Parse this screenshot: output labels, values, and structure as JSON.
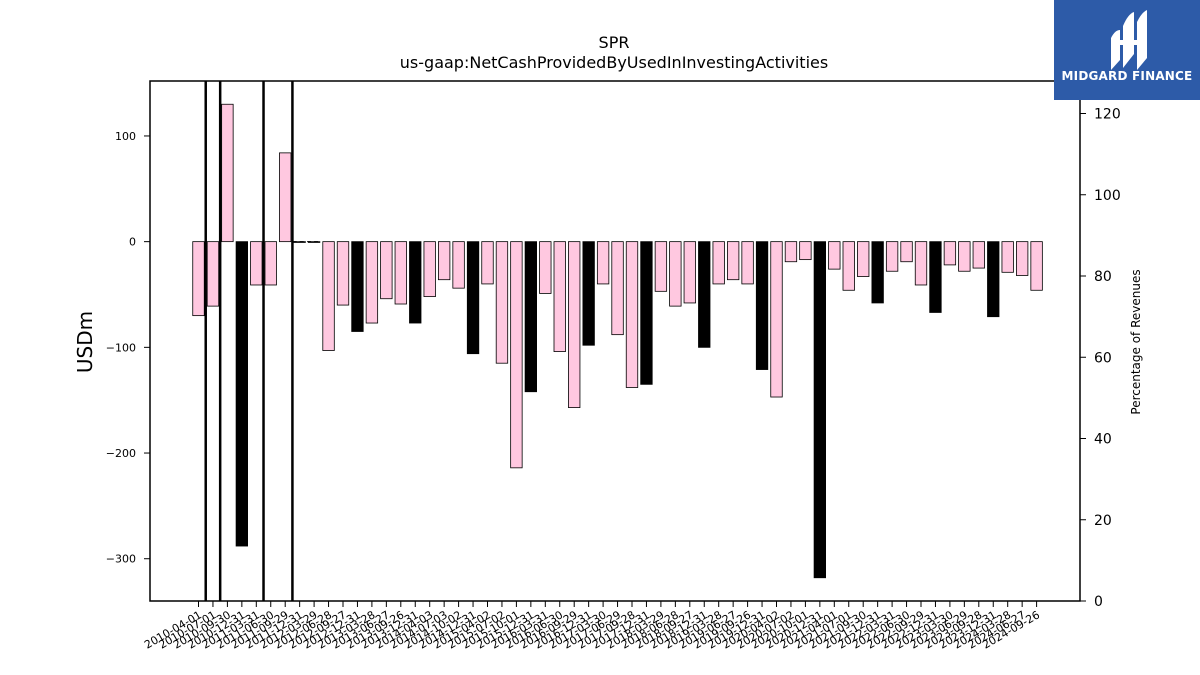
{
  "logo": {
    "text": "MIDGARD FINANCE",
    "background": "#2d5ba8"
  },
  "chart_data": {
    "type": "bar",
    "title": "SPR",
    "subtitle": "us-gaap:NetCashProvidedByUsedInInvestingActivities",
    "ylabel": "USDm",
    "y2label": "Percentage of Revenues",
    "ylim": [
      -340,
      152
    ],
    "y2lim": [
      0,
      128
    ],
    "yticks": [
      100,
      0,
      -100,
      -200,
      -300
    ],
    "y2ticks": [
      0,
      20,
      40,
      60,
      80,
      100,
      120
    ],
    "colors": {
      "quarterly": "#ffc8e0",
      "annual": "#000000",
      "edge": "#000000"
    },
    "categories": [
      "2010-04-01",
      "2010-07-01",
      "2010-09-30",
      "2010-12-31",
      "2011-03-31",
      "2011-06-30",
      "2011-09-29",
      "2011-12-31",
      "2012-03-29",
      "2012-06-28",
      "2012-09-27",
      "2012-12-31",
      "2013-03-28",
      "2013-06-27",
      "2013-09-26",
      "2013-12-31",
      "2014-04-03",
      "2014-07-03",
      "2014-10-02",
      "2014-12-31",
      "2015-04-02",
      "2015-07-02",
      "2015-10-01",
      "2015-12-31",
      "2016-03-31",
      "2016-06-30",
      "2016-09-29",
      "2016-12-31",
      "2017-03-30",
      "2017-06-29",
      "2017-09-28",
      "2017-12-31",
      "2018-03-29",
      "2018-06-28",
      "2018-09-27",
      "2018-12-31",
      "2019-03-28",
      "2019-06-27",
      "2019-09-26",
      "2019-12-31",
      "2020-04-02",
      "2020-07-02",
      "2020-10-01",
      "2020-12-31",
      "2021-04-01",
      "2021-07-01",
      "2021-09-30",
      "2021-12-31",
      "2022-03-31",
      "2022-06-30",
      "2022-09-29",
      "2022-12-31",
      "2023-03-30",
      "2023-06-29",
      "2023-09-28",
      "2023-12-31",
      "2024-03-28",
      "2024-06-27",
      "2024-09-26"
    ],
    "values": [
      -70,
      -61,
      130,
      -288,
      -41,
      -41,
      84,
      0,
      0,
      -103,
      -60,
      -85,
      -77,
      -54,
      -59,
      -77,
      -52,
      -36,
      -44,
      -106,
      -40,
      -115,
      -214,
      -142,
      -49,
      -104,
      -157,
      -98,
      -40,
      -88,
      -138,
      -135,
      -47,
      -61,
      -58,
      -100,
      -40,
      -36,
      -40,
      -121,
      -147,
      -19,
      -17,
      -318,
      -26,
      -46,
      -33,
      -58,
      -28,
      -19,
      -41,
      -67,
      -22,
      -28,
      -25,
      -71,
      -29,
      -32,
      -46
    ],
    "annual": [
      false,
      false,
      false,
      true,
      false,
      false,
      false,
      false,
      false,
      false,
      false,
      true,
      false,
      false,
      false,
      true,
      false,
      false,
      false,
      true,
      false,
      false,
      false,
      true,
      false,
      false,
      false,
      true,
      false,
      false,
      false,
      true,
      false,
      false,
      false,
      true,
      false,
      false,
      false,
      true,
      false,
      false,
      false,
      true,
      false,
      false,
      false,
      true,
      false,
      false,
      false,
      true,
      false,
      false,
      false,
      true,
      false,
      false,
      false
    ],
    "markers": [
      "2010-07-01",
      "2010-09-30",
      "2011-06-30",
      "2011-12-31"
    ]
  }
}
